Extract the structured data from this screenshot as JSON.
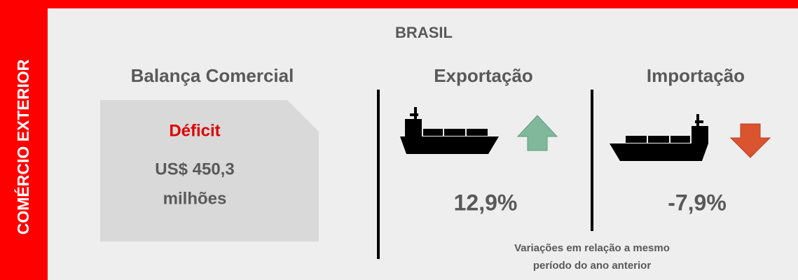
{
  "sidebar": "COMÉRCIO EXTERIOR",
  "title": "BRASIL",
  "balance": {
    "heading": "Balança Comercial",
    "status": "Déficit",
    "amount": "US$ 450,3",
    "unit": "milhões"
  },
  "export": {
    "heading": "Exportação",
    "change": "12,9%"
  },
  "import": {
    "heading": "Importação",
    "change": "-7,9%"
  },
  "note": [
    "Variações em relação a mesmo",
    "período do ano anterior"
  ]
}
